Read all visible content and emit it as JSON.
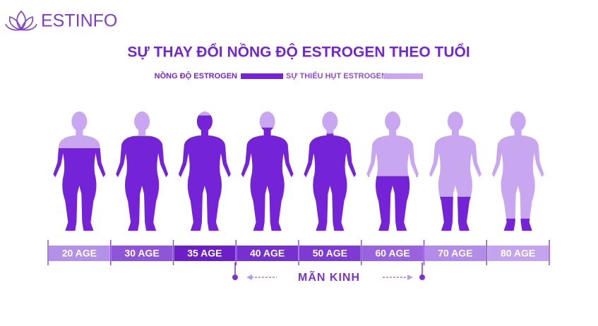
{
  "logo": "ESTINFO",
  "title": "SỰ THAY ĐỔI NỒNG ĐỘ ESTROGEN THEO TUỔI",
  "legend": [
    {
      "label": "NỒNG ĐỘ ESTROGEN",
      "color": "#7424d6"
    },
    {
      "label": "SỰ THIẾU HỤT ESTROGEN",
      "color": "#c9a7f0"
    }
  ],
  "figures": [
    {
      "age": "20 AGE",
      "level": 0.68,
      "bar_color": "#b391e7"
    },
    {
      "age": "30 AGE",
      "level": 0.78,
      "bar_color": "#8f55d9"
    },
    {
      "age": "35 AGE",
      "level": 0.95,
      "bar_color": "#6b20c6"
    },
    {
      "age": "40 AGE",
      "level": 0.85,
      "bar_color": "#7530cd"
    },
    {
      "age": "50 AGE",
      "level": 0.8,
      "bar_color": "#7f3ad3"
    },
    {
      "age": "60 AGE",
      "level": 0.45,
      "bar_color": "#9a62de"
    },
    {
      "age": "70 AGE",
      "level": 0.28,
      "bar_color": "#b38be8"
    },
    {
      "age": "80 AGE",
      "level": 0.1,
      "bar_color": "#c4a4ef"
    }
  ],
  "menopause": "MÃN KINH"
}
